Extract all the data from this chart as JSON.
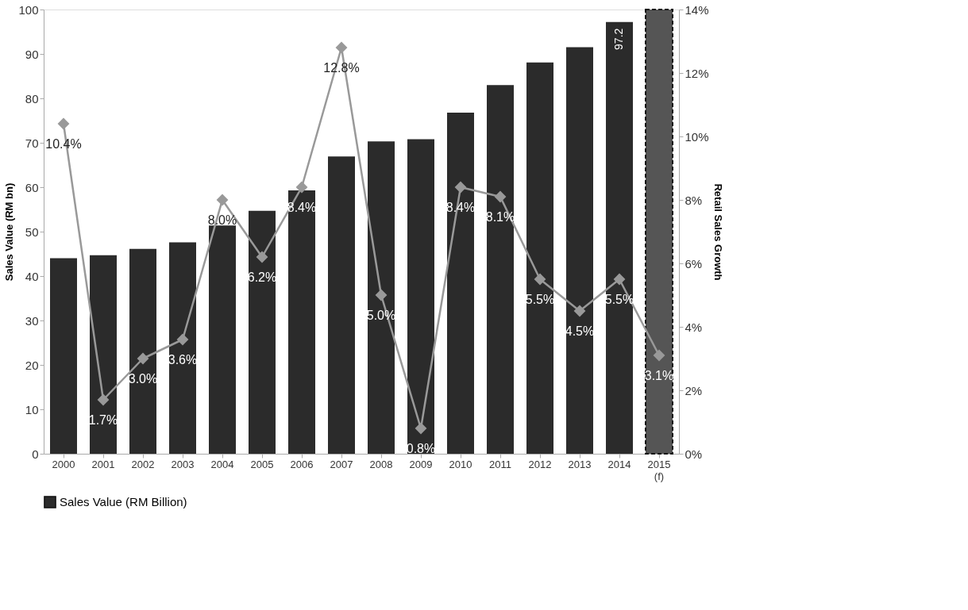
{
  "chart_data": {
    "type": "bar",
    "categories": [
      "2000",
      "2001",
      "2002",
      "2003",
      "2004",
      "2005",
      "2006",
      "2007",
      "2008",
      "2009",
      "2010",
      "2011",
      "2012",
      "2013",
      "2014",
      "2015 (f)"
    ],
    "series": [
      {
        "name": "Sales Value (RM Billion)",
        "color": "#2b2b2b",
        "colors": [
          "#2b2b2b",
          "#2b2b2b",
          "#2b2b2b",
          "#2b2b2b",
          "#2b2b2b",
          "#2b2b2b",
          "#2b2b2b",
          "#2b2b2b",
          "#2b2b2b",
          "#2b2b2b",
          "#2b2b2b",
          "#2b2b2b",
          "#2b2b2b",
          "#2b2b2b",
          "#2b2b2b",
          "#555555"
        ],
        "values": [
          44.0,
          44.7,
          46.1,
          47.6,
          51.4,
          54.7,
          59.3,
          66.9,
          70.3,
          70.8,
          76.8,
          83.0,
          88.1,
          91.5,
          97.2,
          100
        ],
        "value_labels": [
          null,
          null,
          null,
          null,
          null,
          null,
          null,
          null,
          null,
          null,
          null,
          null,
          null,
          null,
          "97.2",
          null
        ]
      },
      {
        "type": "line",
        "axis": "y2",
        "color": "#999999",
        "marker": "diamond",
        "values": [
          10.4,
          1.7,
          3.0,
          3.6,
          8.0,
          6.2,
          8.4,
          12.8,
          5.0,
          0.8,
          8.4,
          8.1,
          5.5,
          4.5,
          5.5,
          3.1
        ],
        "value_labels": [
          "10.4%",
          "1.7%",
          "3.0%",
          "3.6%",
          "8.0%",
          "6.2%",
          "8.4%",
          "12.8%",
          "5.0%",
          "0.8%",
          "8.4%",
          "8.1%",
          "5.5%",
          "4.5%",
          "5.5%",
          "3.1%"
        ]
      }
    ],
    "ylabel": "Sales Value (RM bn)",
    "y2label": "Retail Sales  Growth",
    "ylim": [
      0,
      100
    ],
    "yticks": [
      0,
      10,
      20,
      30,
      40,
      50,
      60,
      70,
      80,
      90,
      100
    ],
    "y2lim": [
      0,
      14
    ],
    "y2ticks": [
      {
        "value": 0,
        "label": "0%"
      },
      {
        "value": 2,
        "label": "2%"
      },
      {
        "value": 4,
        "label": "4%"
      },
      {
        "value": 6,
        "label": "6%"
      },
      {
        "value": 8,
        "label": "8%"
      },
      {
        "value": 10,
        "label": "10%"
      },
      {
        "value": 12,
        "label": "12%"
      },
      {
        "value": 14,
        "label": "14%"
      }
    ],
    "grid": false,
    "legend": "bottom"
  }
}
